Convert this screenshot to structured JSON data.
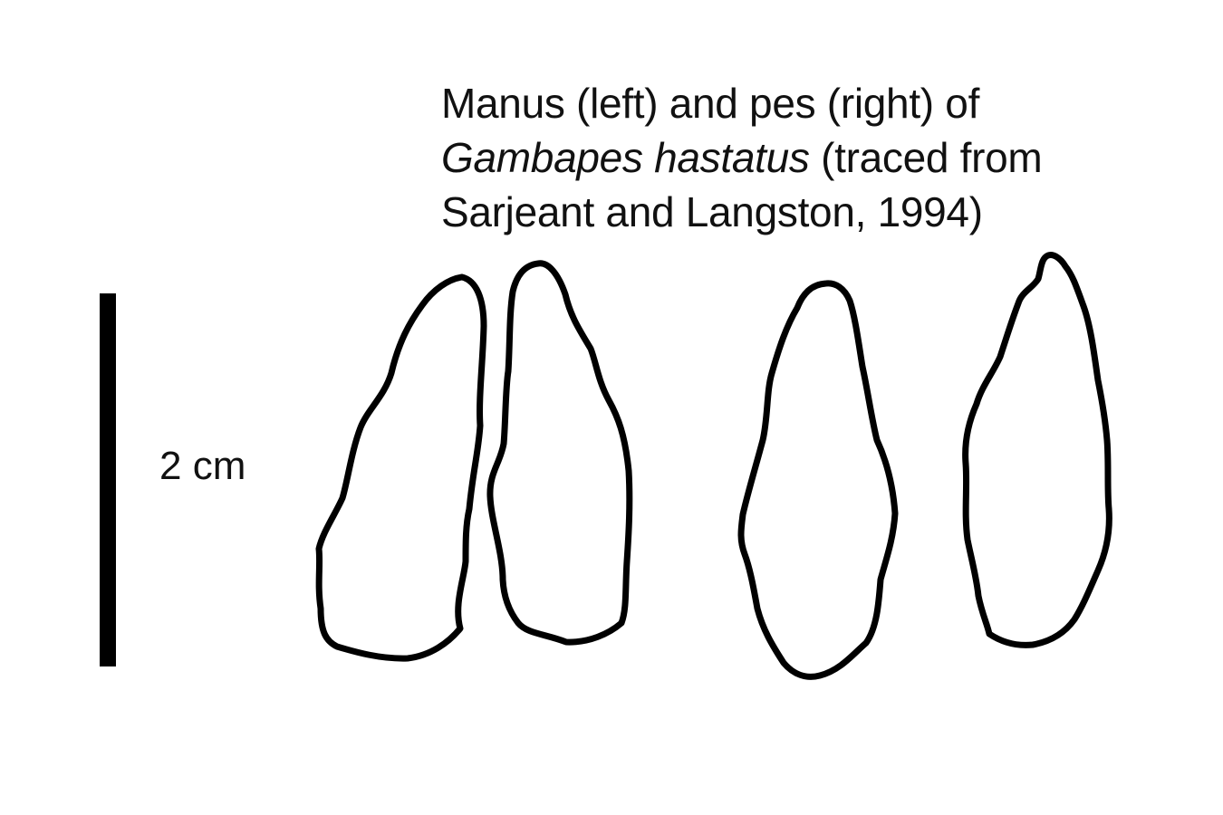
{
  "caption": {
    "line1": "Manus (left) and pes (right) of",
    "line2_italic": "Gambapes hastatus",
    "line2_rest": " (traced from",
    "line3": "Sarjeant and Langston, 1994)"
  },
  "scale_bar": {
    "label": "2 cm"
  }
}
